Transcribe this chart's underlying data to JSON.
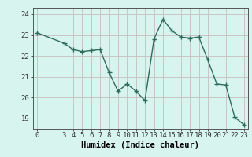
{
  "x": [
    0,
    3,
    4,
    5,
    6,
    7,
    8,
    9,
    10,
    11,
    12,
    13,
    14,
    15,
    16,
    17,
    18,
    19,
    20,
    21,
    22,
    23
  ],
  "y": [
    23.1,
    22.6,
    22.3,
    22.2,
    22.25,
    22.3,
    21.2,
    20.3,
    20.65,
    20.3,
    19.85,
    22.8,
    23.75,
    23.2,
    22.9,
    22.85,
    22.9,
    21.8,
    20.65,
    20.6,
    19.05,
    18.7
  ],
  "line_color": "#2d6b5c",
  "marker": "+",
  "marker_color": "#2d6b5c",
  "bg_color": "#d8f4ef",
  "grid_color": "#c8bebe",
  "xlabel": "Humidex (Indice chaleur)",
  "ylim": [
    18.5,
    24.3
  ],
  "xlim": [
    -0.5,
    23.5
  ],
  "yticks": [
    19,
    20,
    21,
    22,
    23,
    24
  ],
  "xticks": [
    0,
    3,
    4,
    5,
    6,
    7,
    8,
    9,
    10,
    11,
    12,
    13,
    14,
    15,
    16,
    17,
    18,
    19,
    20,
    21,
    22,
    23
  ],
  "tick_fontsize": 6.5,
  "xlabel_fontsize": 7.5,
  "linewidth": 1.0,
  "markersize": 4.5,
  "markeredgewidth": 1.0
}
